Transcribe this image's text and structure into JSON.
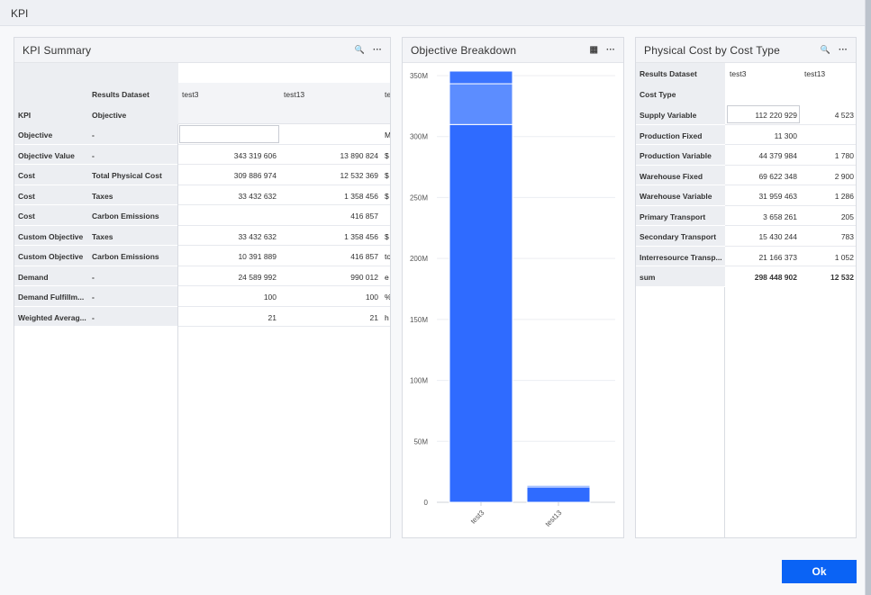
{
  "window": {
    "title": "KPI"
  },
  "kpi_summary": {
    "title": "KPI Summary",
    "header_results_dataset": "Results Dataset",
    "header_kpi": "KPI",
    "header_objective": "Objective",
    "datasets": [
      "test3",
      "test13",
      "te"
    ],
    "rows": [
      {
        "kpi": "Objective",
        "objective": "-",
        "test3": "",
        "test13": "",
        "extra": "M"
      },
      {
        "kpi": "Objective Value",
        "objective": "-",
        "test3": "343 319 606",
        "test13": "13 890 824",
        "extra": "$"
      },
      {
        "kpi": "Cost",
        "objective": "Total Physical Cost",
        "test3": "309 886 974",
        "test13": "12 532 369",
        "extra": "$"
      },
      {
        "kpi": "Cost",
        "objective": "Taxes",
        "test3": "33 432 632",
        "test13": "1 358 456",
        "extra": "$"
      },
      {
        "kpi": "Cost",
        "objective": "Carbon Emissions",
        "test3": "",
        "test13": "416 857",
        "extra": ""
      },
      {
        "kpi": "Custom Objective",
        "objective": "Taxes",
        "test3": "33 432 632",
        "test13": "1 358 456",
        "extra": "$"
      },
      {
        "kpi": "Custom Objective",
        "objective": "Carbon Emissions",
        "test3": "10 391 889",
        "test13": "416 857",
        "extra": "to"
      },
      {
        "kpi": "Demand",
        "objective": "-",
        "test3": "24 589 992",
        "test13": "990 012",
        "extra": "e"
      },
      {
        "kpi": "Demand Fulfillm...",
        "objective": "-",
        "test3": "100",
        "test13": "100",
        "extra": "%"
      },
      {
        "kpi": "Weighted Averag...",
        "objective": "-",
        "test3": "21",
        "test13": "21",
        "extra": "h"
      }
    ]
  },
  "objective_breakdown": {
    "title": "Objective Breakdown"
  },
  "chart_data": {
    "type": "bar",
    "stacked": true,
    "categories": [
      "test3",
      "test13"
    ],
    "series": [
      {
        "values": [
          309886974,
          12532369
        ],
        "color": "#2f6bff"
      },
      {
        "values": [
          33432632,
          1358456
        ],
        "color": "#5c8dff"
      },
      {
        "values": [
          10391889,
          416857
        ],
        "color": "#3b74ff"
      }
    ],
    "yticks": [
      "0",
      "50M",
      "100M",
      "150M",
      "200M",
      "250M",
      "300M",
      "350M"
    ],
    "ylim": [
      0,
      350000000
    ],
    "grid": true
  },
  "physical_cost": {
    "title": "Physical Cost by Cost Type",
    "header_results_dataset": "Results Dataset",
    "header_cost_type": "Cost Type",
    "datasets": [
      "test3",
      "test13"
    ],
    "rows": [
      {
        "type": "Supply Variable",
        "test3": "112 220 929",
        "test13": "4 523"
      },
      {
        "type": "Production Fixed",
        "test3": "11 300",
        "test13": ""
      },
      {
        "type": "Production Variable",
        "test3": "44 379 984",
        "test13": "1 780"
      },
      {
        "type": "Warehouse Fixed",
        "test3": "69 622 348",
        "test13": "2 900"
      },
      {
        "type": "Warehouse Variable",
        "test3": "31 959 463",
        "test13": "1 286"
      },
      {
        "type": "Primary Transport",
        "test3": "3 658 261",
        "test13": "205"
      },
      {
        "type": "Secondary Transport",
        "test3": "15 430 244",
        "test13": "783"
      },
      {
        "type": "Interresource Transp...",
        "test3": "21 166 373",
        "test13": "1 052"
      },
      {
        "type": "sum",
        "test3": "298 448 902",
        "test13": "12 532"
      }
    ]
  },
  "icons": {
    "search": "search-icon",
    "more": "more-icon",
    "table": "table-icon"
  },
  "icon_glyphs": {
    "search": "🔍",
    "more": "···",
    "table": "▦"
  },
  "buttons": {
    "ok": "Ok"
  },
  "colors": {
    "accent": "#0a63f5",
    "bar_main": "#2f6bff",
    "bar_light": "#5c8dff"
  }
}
